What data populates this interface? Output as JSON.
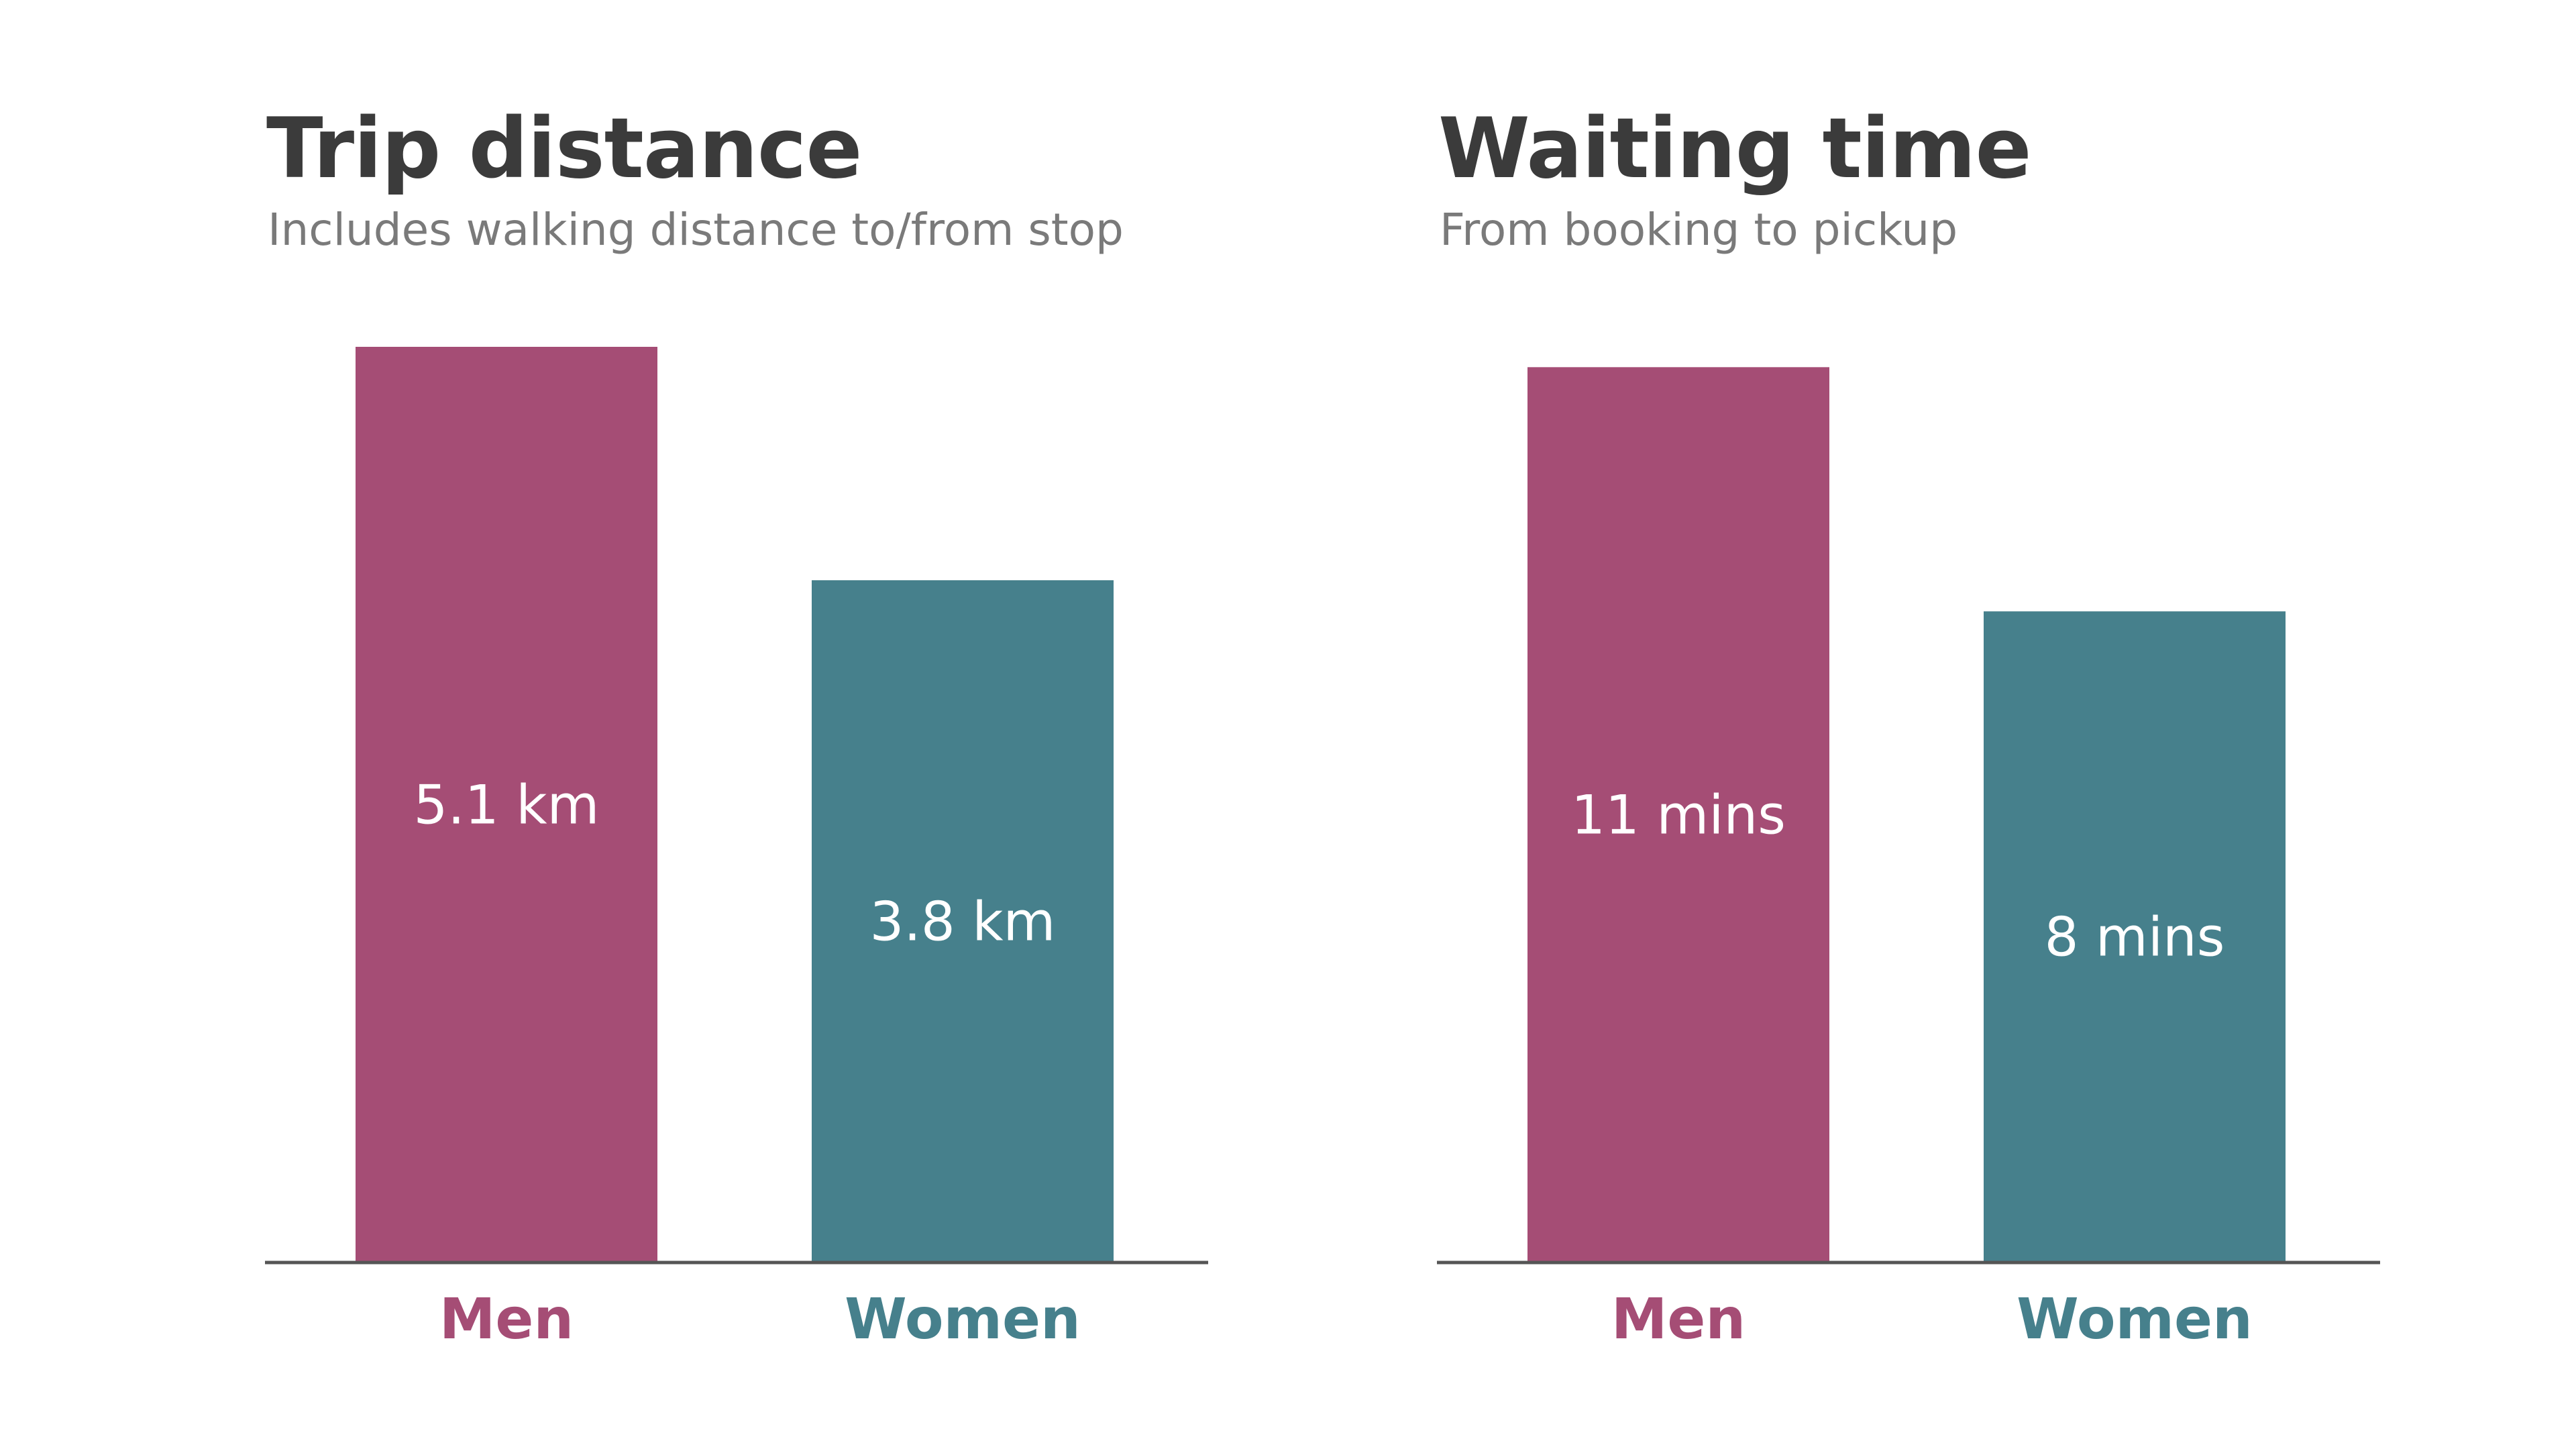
{
  "colors": {
    "men": "#a54d75",
    "women": "#46808c",
    "title": "#3b3b3b",
    "subtitle": "#7a7a7a",
    "axis": "#555555",
    "value_label": "#ffffff"
  },
  "chart_data": [
    {
      "type": "bar",
      "title": "Trip distance",
      "subtitle": "Includes walking distance to/from stop",
      "categories": [
        "Men",
        "Women"
      ],
      "values": [
        5.1,
        3.8
      ],
      "value_labels": [
        "5.1 km",
        "3.8 km"
      ],
      "unit": "km",
      "ylim": [
        0,
        5.1
      ],
      "grid": false,
      "legend": "none",
      "xlabel": "",
      "ylabel": ""
    },
    {
      "type": "bar",
      "title": "Waiting time",
      "subtitle": "From booking to pickup",
      "categories": [
        "Men",
        "Women"
      ],
      "values": [
        11,
        8
      ],
      "value_labels": [
        "11 mins",
        "8 mins"
      ],
      "unit": "mins",
      "ylim": [
        0,
        11.25
      ],
      "grid": false,
      "legend": "none",
      "xlabel": "",
      "ylabel": ""
    }
  ]
}
